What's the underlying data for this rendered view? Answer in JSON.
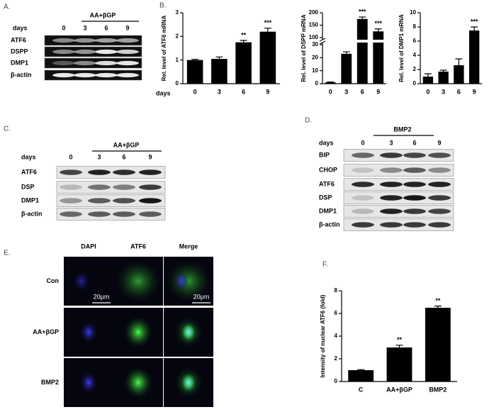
{
  "chart_data": [
    {
      "type": "bar",
      "ylabel": "Rel. level of ATF6 mRNA",
      "x_label": "days",
      "categories": [
        "0",
        "3",
        "6",
        "9"
      ],
      "values": [
        1.0,
        1.05,
        1.75,
        2.2
      ],
      "errors": [
        0.03,
        0.08,
        0.08,
        0.15
      ],
      "annotations": [
        null,
        null,
        "**",
        "***"
      ],
      "ylim": [
        0,
        3
      ],
      "yticks": [
        0,
        1,
        2,
        3
      ],
      "color": "#000000"
    },
    {
      "type": "bar",
      "ylabel": "Rel. level of DSPP mRNA",
      "categories": [
        "0",
        "3",
        "6",
        "9"
      ],
      "values": [
        1,
        23,
        175,
        125
      ],
      "errors": [
        0.3,
        1.5,
        8,
        10
      ],
      "annotations": [
        null,
        null,
        "***",
        "***"
      ],
      "ylim": [
        0,
        200
      ],
      "axis_break": [
        30,
        100
      ],
      "yticks": [
        0,
        10,
        20,
        30,
        100,
        150,
        200
      ],
      "color": "#000000"
    },
    {
      "type": "bar",
      "ylabel": "Rel. level of DMP1 mRNA",
      "categories": [
        "0",
        "3",
        "6",
        "9"
      ],
      "values": [
        1.0,
        1.7,
        2.6,
        7.5
      ],
      "errors": [
        0.4,
        0.2,
        0.9,
        0.5
      ],
      "annotations": [
        null,
        null,
        null,
        "***"
      ],
      "ylim": [
        0,
        10
      ],
      "yticks": [
        0,
        2,
        4,
        6,
        8,
        10
      ],
      "color": "#000000"
    },
    {
      "type": "bar",
      "ylabel": "Intensity of nuclear ATF6 (fold)",
      "categories": [
        "C",
        "AA+βGP",
        "BMP2"
      ],
      "values": [
        1.0,
        3.0,
        6.5
      ],
      "errors": [
        0.05,
        0.2,
        0.15
      ],
      "annotations": [
        null,
        "**",
        "**"
      ],
      "ylim": [
        0,
        8
      ],
      "yticks": [
        0,
        2,
        4,
        6,
        8
      ],
      "color": "#000000"
    }
  ],
  "panel_labels": [
    "A.",
    "B.",
    "C.",
    "D.",
    "E.",
    "F."
  ],
  "blots": [
    {
      "header": "AA+βGP",
      "days_label": "days",
      "days": [
        "0",
        "3",
        "6",
        "9"
      ],
      "rows": [
        "ATF6",
        "DSPP",
        "DMP1",
        "β-actin"
      ]
    },
    {
      "header": "AA+βGP",
      "days_label": "days",
      "days": [
        "0",
        "3",
        "6",
        "9"
      ],
      "rows": [
        "ATF6",
        "DSP",
        "DMP1",
        "β-actin"
      ]
    },
    {
      "header": "BMP2",
      "days_label": "days",
      "days": [
        "0",
        "3",
        "6",
        "9"
      ],
      "rows": [
        "BIP",
        "CHOP",
        "ATF6",
        "DSP",
        "DMP1",
        "β-actin"
      ]
    }
  ],
  "imaging": {
    "columns": [
      "DAPI",
      "ATF6",
      "Merge"
    ],
    "rows": [
      "Con",
      "AA+βGP",
      "BMP2"
    ],
    "scale_bars": [
      "20μm",
      "20μm"
    ]
  }
}
